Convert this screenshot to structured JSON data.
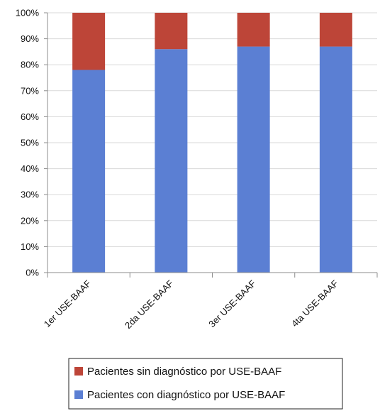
{
  "chart_data": {
    "type": "bar",
    "stacked": true,
    "categories": [
      "1er  USE-BAAF",
      "2da USE-BAAF",
      "3er USE-BAAF",
      "4ta USE-BAAF"
    ],
    "series": [
      {
        "name": "Pacientes con diagnóstico por USE-BAAF",
        "color": "#5B7FD3",
        "values": [
          78,
          86,
          87,
          87
        ]
      },
      {
        "name": "Pacientes sin diagnóstico por USE-BAAF",
        "color": "#BD4538",
        "values": [
          22,
          14,
          13,
          13
        ]
      }
    ],
    "ylim": [
      0,
      100
    ],
    "yticks": [
      "0%",
      "10%",
      "20%",
      "30%",
      "40%",
      "50%",
      "60%",
      "70%",
      "80%",
      "90%",
      "100%"
    ],
    "grid": true,
    "legend": [
      "Pacientes sin diagnóstico por USE-BAAF",
      "Pacientes con diagnóstico por USE-BAAF"
    ],
    "legend_position": "bottom"
  }
}
